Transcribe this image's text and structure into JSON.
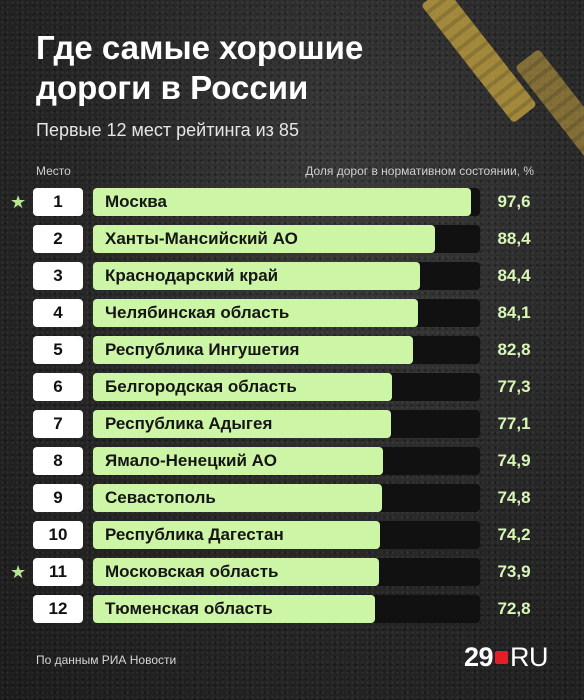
{
  "header": {
    "title": "Где самые хорошие дороги в России",
    "subtitle": "Первые 12 мест рейтинга из 85"
  },
  "columns": {
    "left": "Место",
    "right": "Доля дорог в нормативном состоянии, %"
  },
  "footer": {
    "source": "По данным РИА Новости",
    "logo_num": "29",
    "logo_suffix": "RU"
  },
  "colors": {
    "bar": "#cdf5a6",
    "track": "#111111",
    "value_text": "#d8f7b6",
    "star": "#b7e88f",
    "logo_dot": "#e41e26"
  },
  "chart_data": {
    "type": "bar",
    "orientation": "horizontal",
    "xlim": [
      0,
      100
    ],
    "categories": [
      "Москва",
      "Ханты-Мансийский АО",
      "Краснодарский край",
      "Челябинская область",
      "Республика Ингушетия",
      "Белгородская область",
      "Республика Адыгея",
      "Ямало-Ненецкий АО",
      "Севастополь",
      "Республика Дагестан",
      "Московская область",
      "Тюменская область"
    ],
    "ranks": [
      "1",
      "2",
      "3",
      "4",
      "5",
      "6",
      "7",
      "8",
      "9",
      "10",
      "11",
      "12"
    ],
    "values": [
      97.6,
      88.4,
      84.4,
      84.1,
      82.8,
      77.3,
      77.1,
      74.9,
      74.8,
      74.2,
      73.9,
      72.8
    ],
    "value_labels": [
      "97,6",
      "88,4",
      "84,4",
      "84,1",
      "82,8",
      "77,3",
      "77,1",
      "74,9",
      "74,8",
      "74,2",
      "73,9",
      "72,8"
    ],
    "starred": [
      true,
      false,
      false,
      false,
      false,
      false,
      false,
      false,
      false,
      false,
      true,
      false
    ]
  }
}
